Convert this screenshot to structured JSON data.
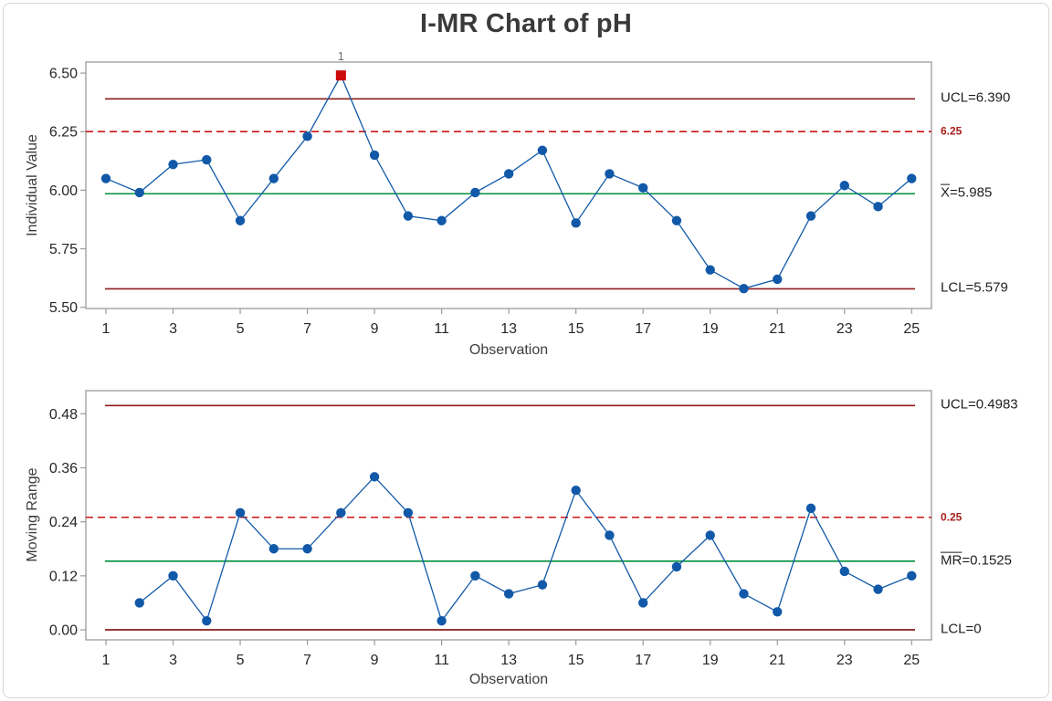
{
  "title": "I-MR Chart of pH",
  "colors": {
    "series_blue": "#1159a8",
    "limit_maroon": "#8e1c1c",
    "spec_red": "#cc1414",
    "center_green": "#00913c",
    "ooc_red": "#cc0a0a",
    "ooc_label_gray": "#6a6a6a",
    "frame_gray": "#9b9b9b",
    "tick_text": "#262626"
  },
  "chart_data": [
    {
      "type": "line",
      "name": "individuals-chart",
      "title": "I-MR Chart of pH",
      "ylabel": "Individual Value",
      "xlabel": "Observation",
      "x": [
        1,
        2,
        3,
        4,
        5,
        6,
        7,
        8,
        9,
        10,
        11,
        12,
        13,
        14,
        15,
        16,
        17,
        18,
        19,
        20,
        21,
        22,
        23,
        24,
        25
      ],
      "values": [
        6.05,
        5.99,
        6.11,
        6.13,
        5.87,
        6.05,
        6.23,
        6.49,
        6.15,
        5.89,
        5.87,
        5.99,
        6.07,
        6.17,
        5.86,
        6.07,
        6.01,
        5.87,
        5.66,
        5.58,
        5.62,
        5.89,
        6.02,
        5.93,
        6.05
      ],
      "center_line": 5.985,
      "ucl": 6.39,
      "lcl": 5.579,
      "spec_line": 6.25,
      "ylim": [
        5.495,
        6.547
      ],
      "yticks": [
        5.5,
        5.75,
        6.0,
        6.25,
        6.5
      ],
      "ytick_labels": [
        "5.50",
        "5.75",
        "6.00",
        "6.25",
        "6.50"
      ],
      "xticks": [
        1,
        3,
        5,
        7,
        9,
        11,
        13,
        15,
        17,
        19,
        21,
        23,
        25
      ],
      "out_of_control": [
        {
          "x": 8,
          "label": "1"
        }
      ],
      "legend_position": "right",
      "grid": false,
      "labels": {
        "ucl": "UCL=6.390",
        "spec": "6.25",
        "center_barred": "X",
        "center_rest": "=5.985",
        "lcl": "LCL=5.579"
      }
    },
    {
      "type": "line",
      "name": "moving-range-chart",
      "ylabel": "Moving Range",
      "xlabel": "Observation",
      "x": [
        2,
        3,
        4,
        5,
        6,
        7,
        8,
        9,
        10,
        11,
        12,
        13,
        14,
        15,
        16,
        17,
        18,
        19,
        20,
        21,
        22,
        23,
        24,
        25
      ],
      "values": [
        0.06,
        0.12,
        0.02,
        0.26,
        0.18,
        0.18,
        0.26,
        0.34,
        0.26,
        0.02,
        0.12,
        0.08,
        0.1,
        0.31,
        0.21,
        0.06,
        0.14,
        0.21,
        0.08,
        0.04,
        0.27,
        0.13,
        0.09,
        0.12
      ],
      "center_line": 0.1525,
      "ucl": 0.4983,
      "lcl": 0,
      "spec_line": 0.25,
      "ylim": [
        -0.0223,
        0.5314
      ],
      "yticks": [
        0.0,
        0.12,
        0.24,
        0.36,
        0.48
      ],
      "ytick_labels": [
        "0.00",
        "0.12",
        "0.24",
        "0.36",
        "0.48"
      ],
      "xticks": [
        1,
        3,
        5,
        7,
        9,
        11,
        13,
        15,
        17,
        19,
        21,
        23,
        25
      ],
      "out_of_control": [],
      "legend_position": "right",
      "grid": false,
      "labels": {
        "ucl": "UCL=0.4983",
        "spec": "0.25",
        "center_barred": "MR",
        "center_rest": "=0.1525",
        "lcl": "LCL=0"
      }
    }
  ]
}
